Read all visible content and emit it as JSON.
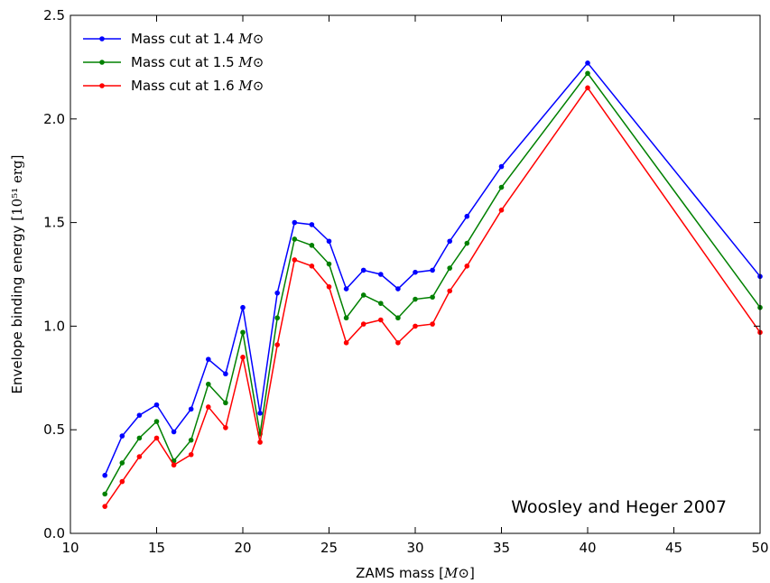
{
  "chart_data": {
    "type": "line",
    "title": "",
    "xlabel": "ZAMS mass",
    "xlabel_unit": "M⊙",
    "ylabel": "Envelope binding energy",
    "ylabel_unit": "10⁵¹ erg",
    "xlim": [
      10,
      50
    ],
    "ylim": [
      0.0,
      2.5
    ],
    "xticks": [
      10,
      15,
      20,
      25,
      30,
      35,
      40,
      45,
      50
    ],
    "yticks": [
      0.0,
      0.5,
      1.0,
      1.5,
      2.0,
      2.5
    ],
    "xtick_labels": [
      "10",
      "15",
      "20",
      "25",
      "30",
      "35",
      "40",
      "45",
      "50"
    ],
    "ytick_labels": [
      "0.0",
      "0.5",
      "1.0",
      "1.5",
      "2.0",
      "2.5"
    ],
    "grid": false,
    "legend_position": "top-left",
    "annotation": "Woosley and Heger 2007",
    "x": [
      12,
      13,
      14,
      15,
      16,
      17,
      18,
      19,
      20,
      21,
      22,
      23,
      24,
      25,
      26,
      27,
      28,
      29,
      30,
      31,
      32,
      33,
      35,
      40,
      50
    ],
    "series": [
      {
        "name": "Mass cut at 1.4 M⊙",
        "name_text": "Mass cut at 1.4",
        "name_unit": "M⊙",
        "color": "#0000ff",
        "values": [
          0.28,
          0.47,
          0.57,
          0.62,
          0.49,
          0.6,
          0.84,
          0.77,
          1.09,
          0.58,
          1.16,
          1.5,
          1.49,
          1.41,
          1.18,
          1.27,
          1.25,
          1.18,
          1.26,
          1.27,
          1.41,
          1.53,
          1.77,
          2.27,
          1.24
        ]
      },
      {
        "name": "Mass cut at 1.5 M⊙",
        "name_text": "Mass cut at 1.5",
        "name_unit": "M⊙",
        "color": "#008000",
        "values": [
          0.19,
          0.34,
          0.46,
          0.54,
          0.35,
          0.45,
          0.72,
          0.63,
          0.97,
          0.48,
          1.04,
          1.42,
          1.39,
          1.3,
          1.04,
          1.15,
          1.11,
          1.04,
          1.13,
          1.14,
          1.28,
          1.4,
          1.67,
          2.22,
          1.09
        ]
      },
      {
        "name": "Mass cut at 1.6 M⊙",
        "name_text": "Mass cut at 1.6",
        "name_unit": "M⊙",
        "color": "#ff0000",
        "values": [
          0.13,
          0.25,
          0.37,
          0.46,
          0.33,
          0.38,
          0.61,
          0.51,
          0.85,
          0.44,
          0.91,
          1.32,
          1.29,
          1.19,
          0.92,
          1.01,
          1.03,
          0.92,
          1.0,
          1.01,
          1.17,
          1.29,
          1.56,
          2.15,
          0.97
        ]
      }
    ]
  }
}
